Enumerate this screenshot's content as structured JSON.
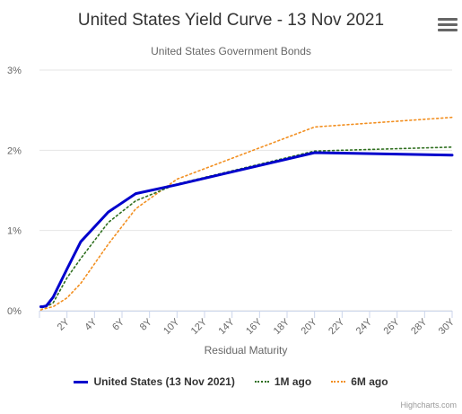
{
  "title": "United States Yield Curve - 13 Nov 2021",
  "subtitle": "United States Government Bonds",
  "credits": "Highcharts.com",
  "menu_icon": "hamburger-menu-icon",
  "chart_data": {
    "type": "line",
    "xlabel": "Residual Maturity",
    "ylabel": "",
    "x_tick_labels": [
      "2Y",
      "4Y",
      "6Y",
      "8Y",
      "10Y",
      "12Y",
      "14Y",
      "16Y",
      "18Y",
      "20Y",
      "22Y",
      "24Y",
      "26Y",
      "28Y",
      "30Y"
    ],
    "y_tick_labels": [
      "0%",
      "1%",
      "2%",
      "3%"
    ],
    "xlim": [
      0,
      30
    ],
    "ylim": [
      0,
      3
    ],
    "grid": true,
    "legend_position": "bottom-center",
    "series": [
      {
        "name": "United States (13 Nov 2021)",
        "color": "#0000cc",
        "style": "solid",
        "points": [
          [
            0.1,
            0.05
          ],
          [
            0.25,
            0.05
          ],
          [
            0.5,
            0.06
          ],
          [
            1,
            0.17
          ],
          [
            2,
            0.52
          ],
          [
            3,
            0.86
          ],
          [
            5,
            1.23
          ],
          [
            7,
            1.46
          ],
          [
            10,
            1.57
          ],
          [
            20,
            1.97
          ],
          [
            30,
            1.94
          ]
        ]
      },
      {
        "name": "1M ago",
        "color": "#2f6f1f",
        "style": "dotted",
        "points": [
          [
            0.1,
            0.04
          ],
          [
            0.25,
            0.04
          ],
          [
            0.5,
            0.05
          ],
          [
            1,
            0.1
          ],
          [
            2,
            0.41
          ],
          [
            3,
            0.65
          ],
          [
            5,
            1.1
          ],
          [
            7,
            1.37
          ],
          [
            10,
            1.58
          ],
          [
            20,
            1.99
          ],
          [
            30,
            2.04
          ]
        ]
      },
      {
        "name": "6M ago",
        "color": "#f28f20",
        "style": "dotted",
        "points": [
          [
            0.1,
            0.01
          ],
          [
            0.25,
            0.02
          ],
          [
            0.5,
            0.03
          ],
          [
            1,
            0.05
          ],
          [
            2,
            0.16
          ],
          [
            3,
            0.34
          ],
          [
            5,
            0.83
          ],
          [
            7,
            1.27
          ],
          [
            10,
            1.64
          ],
          [
            20,
            2.29
          ],
          [
            30,
            2.41
          ]
        ]
      }
    ]
  }
}
